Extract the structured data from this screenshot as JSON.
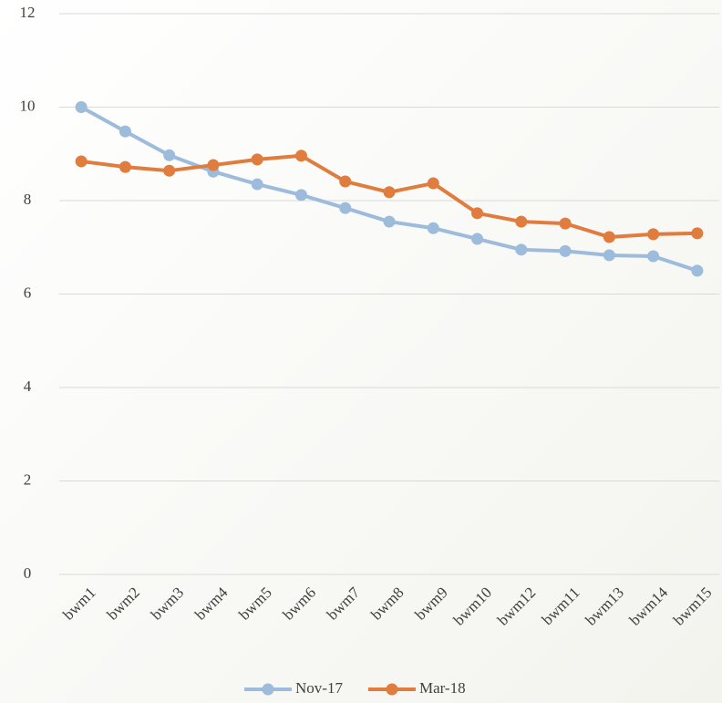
{
  "chart_data": {
    "type": "line",
    "categories": [
      "bwm1",
      "bwm2",
      "bwm3",
      "bwm4",
      "bwm5",
      "bwm6",
      "bwm7",
      "bwm8",
      "bwm9",
      "bwm10",
      "bwm12",
      "bwm11",
      "bwm13",
      "bwm14",
      "bwm15"
    ],
    "series": [
      {
        "name": "Nov-17",
        "color": "#9dbbdb",
        "values": [
          10.0,
          9.48,
          8.97,
          8.62,
          8.35,
          8.12,
          7.84,
          7.55,
          7.41,
          7.18,
          6.95,
          6.92,
          6.83,
          6.81,
          6.5
        ]
      },
      {
        "name": "Mar-18",
        "color": "#e07c3e",
        "values": [
          8.84,
          8.72,
          8.64,
          8.76,
          8.88,
          8.96,
          8.41,
          8.18,
          8.37,
          7.73,
          7.55,
          7.51,
          7.22,
          7.28,
          7.3
        ]
      }
    ],
    "ylim": [
      0,
      12
    ],
    "yticks": [
      0,
      2,
      4,
      6,
      8,
      10,
      12
    ],
    "grid": true,
    "legend": "bottom"
  }
}
